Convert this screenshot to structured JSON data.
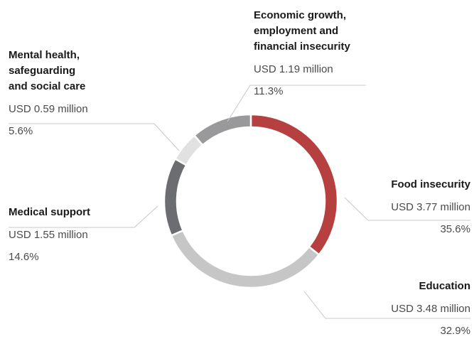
{
  "chart_data": {
    "type": "pie",
    "variant": "donut",
    "slices": [
      {
        "category": "Food insecurity",
        "amount": "USD 3.77 million",
        "percent": "35.6%",
        "value": 35.6,
        "color": "#b5403f"
      },
      {
        "category": "Education",
        "amount": "USD 3.48 million",
        "percent": "32.9%",
        "value": 32.9,
        "color": "#c6c6c6"
      },
      {
        "category": "Medical support",
        "amount": "USD 1.55 million",
        "percent": "14.6%",
        "value": 14.6,
        "color": "#6c6d70"
      },
      {
        "category": "Mental health, safeguarding and social care",
        "amount": "USD 0.59 million",
        "percent": "5.6%",
        "value": 5.6,
        "color": "#e1e1e1"
      },
      {
        "category": "Economic growth, employment and financial insecurity",
        "amount": "USD 1.19 million",
        "percent": "11.3%",
        "value": 11.3,
        "color": "#99999b"
      }
    ],
    "start_angle": "12 o'clock",
    "direction": "clockwise",
    "legend": "none"
  }
}
